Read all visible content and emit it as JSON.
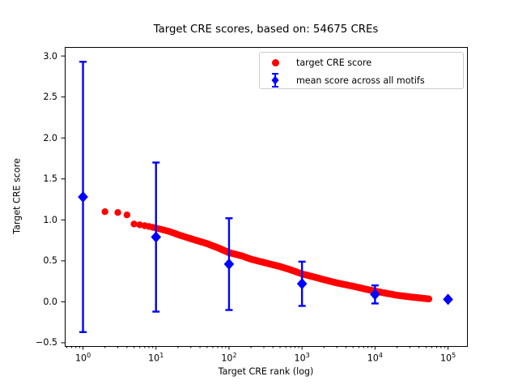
{
  "chart_data": {
    "type": "scatter",
    "title": "Target CRE scores, based on: 54675 CREs",
    "xlabel": "Target CRE rank (log)",
    "ylabel": "Target CRE score",
    "x_scale": "log",
    "xlim_log10": [
      -0.25,
      5.26
    ],
    "ylim": [
      -0.54,
      3.11
    ],
    "grid": false,
    "colors": {
      "target_series": "#ff0000",
      "mean_series": "#0000ff",
      "axes": "#000000",
      "legend_border": "#cccccc",
      "background": "#ffffff"
    },
    "x_ticks": [
      {
        "value": 1,
        "base": "10",
        "exp": "0"
      },
      {
        "value": 10,
        "base": "10",
        "exp": "1"
      },
      {
        "value": 100,
        "base": "10",
        "exp": "2"
      },
      {
        "value": 1000,
        "base": "10",
        "exp": "3"
      },
      {
        "value": 10000,
        "base": "10",
        "exp": "4"
      },
      {
        "value": 100000,
        "base": "10",
        "exp": "5"
      }
    ],
    "y_ticks": [
      {
        "value": 3.0,
        "label": "3.0"
      },
      {
        "value": 2.5,
        "label": "2.5"
      },
      {
        "value": 2.0,
        "label": "2.0"
      },
      {
        "value": 1.5,
        "label": "1.5"
      },
      {
        "value": 1.0,
        "label": "1.0"
      },
      {
        "value": 0.5,
        "label": "0.5"
      },
      {
        "value": 0.0,
        "label": "0.0"
      },
      {
        "value": -0.5,
        "label": "−0.5"
      }
    ],
    "series": [
      {
        "name": "target CRE score",
        "type": "scatter",
        "marker": "circle",
        "color": "#ff0000",
        "total_points": 54675,
        "rank_range": [
          2,
          54675
        ],
        "anchors": [
          [
            2,
            1.1
          ],
          [
            3,
            1.09
          ],
          [
            4,
            1.06
          ],
          [
            5,
            0.95
          ],
          [
            6,
            0.94
          ],
          [
            8,
            0.92
          ],
          [
            10,
            0.9
          ],
          [
            15,
            0.86
          ],
          [
            20,
            0.82
          ],
          [
            30,
            0.77
          ],
          [
            50,
            0.71
          ],
          [
            70,
            0.66
          ],
          [
            100,
            0.6
          ],
          [
            150,
            0.56
          ],
          [
            200,
            0.52
          ],
          [
            300,
            0.48
          ],
          [
            500,
            0.43
          ],
          [
            700,
            0.39
          ],
          [
            1000,
            0.34
          ],
          [
            1500,
            0.3
          ],
          [
            2000,
            0.27
          ],
          [
            3000,
            0.23
          ],
          [
            5000,
            0.19
          ],
          [
            7000,
            0.16
          ],
          [
            10000,
            0.13
          ],
          [
            15000,
            0.1
          ],
          [
            20000,
            0.08
          ],
          [
            30000,
            0.06
          ],
          [
            54675,
            0.035
          ]
        ]
      },
      {
        "name": "mean score across all motifs",
        "type": "errorbar",
        "marker": "diamond",
        "color": "#0000ff",
        "points": [
          {
            "x": 1,
            "y": 1.28,
            "err": 1.65
          },
          {
            "x": 10,
            "y": 0.79,
            "err": 0.91
          },
          {
            "x": 100,
            "y": 0.46,
            "err": 0.56
          },
          {
            "x": 1000,
            "y": 0.22,
            "err": 0.27
          },
          {
            "x": 10000,
            "y": 0.09,
            "err": 0.11
          },
          {
            "x": 100000,
            "y": 0.03,
            "err": 0.0
          }
        ]
      }
    ],
    "legend": {
      "position": "upper right",
      "entries": [
        "target CRE score",
        "mean score across all motifs"
      ]
    }
  }
}
